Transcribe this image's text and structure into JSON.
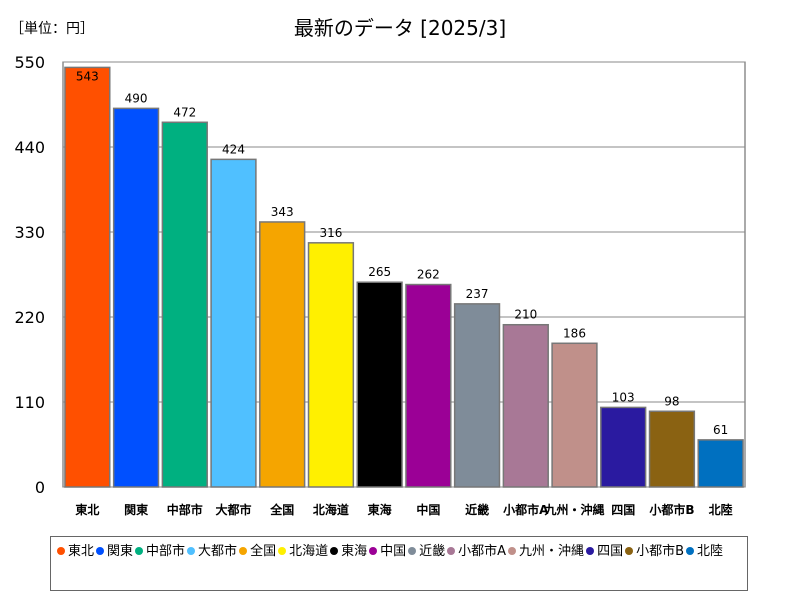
{
  "header": {
    "unit_label": "［単位：円］",
    "title": "最新のデータ [2025/3]"
  },
  "chart_data": {
    "type": "bar",
    "title": "最新のデータ [2025/3]",
    "unit": "［単位：円］",
    "categories": [
      "東北",
      "関東",
      "中部市",
      "大都市",
      "全国",
      "北海道",
      "東海",
      "中国",
      "近畿",
      "小都市A",
      "九州・沖縄",
      "四国",
      "小都市B",
      "北陸"
    ],
    "axis_labels": [
      "東北",
      "関東",
      "中部市",
      "大都市",
      "全国",
      "北海道",
      "東海",
      "中国",
      "近畿",
      "小都市A",
      "九州・沖縄",
      "四国",
      "小都市B",
      "北陸"
    ],
    "values": [
      543,
      490,
      472,
      424,
      343,
      316,
      265,
      262,
      237,
      210,
      186,
      103,
      98,
      61
    ],
    "colors": [
      "#ff5000",
      "#0050ff",
      "#00b080",
      "#50c0ff",
      "#f5a500",
      "#fff000",
      "#000000",
      "#9b0096",
      "#7f8c99",
      "#a87896",
      "#c0908a",
      "#2a1aa0",
      "#8a6212",
      "#0070c0"
    ],
    "ylim": [
      0,
      550
    ],
    "yticks": [
      0,
      110,
      220,
      330,
      440,
      550
    ],
    "grid": true,
    "legend": "bottom"
  }
}
